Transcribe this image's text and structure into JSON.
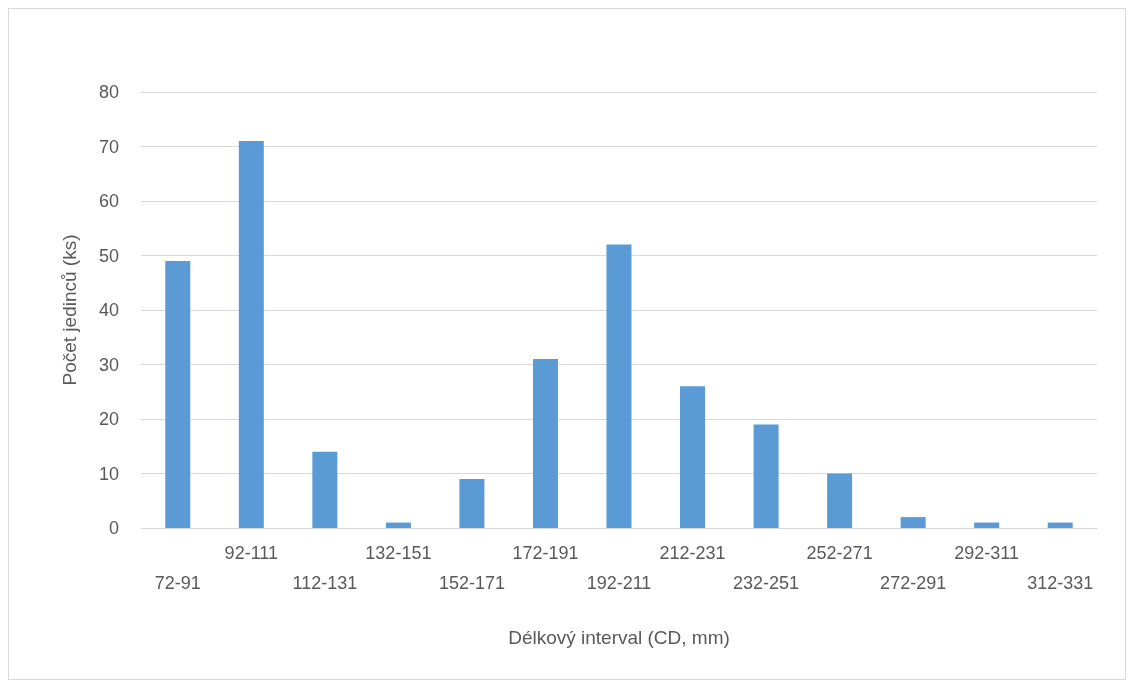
{
  "chart_data": {
    "type": "bar",
    "xlabel": "Délkový interval (CD, mm)",
    "ylabel": "Počet jedinců (ks)",
    "categories": [
      "72-91",
      "92-111",
      "112-131",
      "132-151",
      "152-171",
      "172-191",
      "192-211",
      "212-231",
      "232-251",
      "252-271",
      "272-291",
      "292-311",
      "312-331"
    ],
    "values": [
      49,
      71,
      14,
      1,
      9,
      31,
      52,
      26,
      19,
      10,
      2,
      1,
      1
    ],
    "color": "#5b9bd5",
    "ylim": [
      0,
      80
    ],
    "yticks": [
      0,
      10,
      20,
      30,
      40,
      50,
      60,
      70,
      80
    ],
    "grid": "y"
  }
}
